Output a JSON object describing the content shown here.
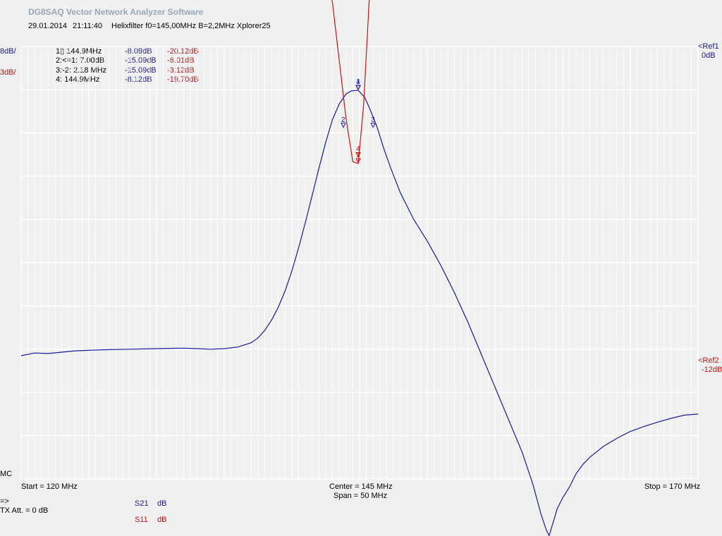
{
  "app_title": "DG8SAQ Vector Network Analyzer Software",
  "header": {
    "date": "29.01.2014",
    "time": "21:11:40",
    "note": "Helixfilter f0=145,00MHz B=2,2MHz Xplorer25"
  },
  "scales": {
    "s21_scale": "8dB/",
    "s11_scale": "3dB/"
  },
  "refs": {
    "ref1_label": "<Ref1",
    "ref1_value": "0dB",
    "ref2_label": "<Ref2",
    "ref2_value": "-12dB"
  },
  "markers_table": [
    {
      "label": "1▯ 144.9MHz",
      "s21": "-8.09dB",
      "s11": "-20.12dB"
    },
    {
      "label": "2:<=1:  7.00dB",
      "s21": "-15.09dB",
      "s11": "-6.01dB"
    },
    {
      "label": "3:-2:  2.18 MHz",
      "s21": "-15.09dB",
      "s11": "-3.12dB"
    },
    {
      "label": "4:  144.9MHz",
      "s21": "-8.12dB",
      "s11": "-19.70dB"
    }
  ],
  "mode": "MC",
  "freq_axis": {
    "start": "Start = 120 MHz",
    "center": "Center = 145 MHz",
    "span": "Span = 50 MHz",
    "stop": "Stop = 170 MHz"
  },
  "footer": {
    "arrow": "=>",
    "tx_att": "TX Att.  = 0 dB",
    "trace1_name": "S21",
    "trace1_unit": "dB",
    "trace2_name": "S11",
    "trace2_unit": "dB"
  },
  "colors": {
    "s21": "#1a1aa0",
    "s11": "#c81414",
    "grid": "#ffffff",
    "background": "#f0f0f0"
  },
  "chart_data": {
    "type": "line",
    "xlim": [
      120,
      170
    ],
    "grid": true,
    "series": [
      {
        "name": "S21",
        "unit": "dB",
        "scale_per_div": 8,
        "ref_value": 0,
        "x": [
          120,
          121,
          122,
          124,
          126,
          128,
          130,
          132,
          133,
          134,
          135,
          136,
          137,
          137.5,
          138,
          138.5,
          139,
          139.5,
          140,
          140.5,
          141,
          141.5,
          142,
          142.5,
          143,
          143.5,
          144,
          144.4,
          144.9,
          145.4,
          145.8,
          146.3,
          146.8,
          147.3,
          148,
          149,
          150,
          151,
          152,
          153,
          154,
          155,
          156,
          157,
          157.8,
          158.4,
          158.8,
          159,
          159.3,
          159.6,
          160,
          160.5,
          161,
          161.5,
          162,
          163,
          164,
          165,
          166,
          167,
          168,
          169,
          170
        ],
        "values": [
          -57.2,
          -56.7,
          -56.8,
          -56.3,
          -56.1,
          -56.0,
          -55.9,
          -55.8,
          -55.9,
          -56.0,
          -55.9,
          -55.6,
          -54.8,
          -53.9,
          -52.5,
          -50.6,
          -48.2,
          -45.2,
          -41.5,
          -37.2,
          -32.5,
          -27.5,
          -22.5,
          -17.7,
          -13.5,
          -10.6,
          -8.8,
          -8.2,
          -8.1,
          -9.5,
          -11.8,
          -15.0,
          -19.0,
          -22.5,
          -27.0,
          -32.0,
          -36.0,
          -40.5,
          -45.5,
          -51.0,
          -57.0,
          -63.0,
          -69.0,
          -75.0,
          -81.0,
          -86.5,
          -89.5,
          -90.5,
          -88.0,
          -85.5,
          -83.5,
          -81.5,
          -79.0,
          -77.3,
          -76.0,
          -74.0,
          -72.5,
          -71.2,
          -70.3,
          -69.5,
          -68.8,
          -68.2,
          -68.0
        ]
      },
      {
        "name": "S11",
        "unit": "dB",
        "scale_per_div": 3,
        "ref_value": -12,
        "x": [
          120,
          122,
          124,
          126,
          128,
          130,
          132,
          134,
          136,
          137,
          138,
          139,
          140,
          140.5,
          141,
          141.5,
          142,
          142.5,
          143,
          143.5,
          144,
          144.5,
          144.9,
          145.3,
          145.7,
          146.1,
          146.5,
          147,
          147.5,
          148,
          149,
          150,
          152,
          155,
          160,
          165,
          170
        ],
        "values": [
          -0.1,
          -0.1,
          -0.1,
          -0.08,
          -0.08,
          -0.08,
          -0.08,
          -0.1,
          -0.1,
          -0.15,
          -0.22,
          -0.35,
          -0.6,
          -0.9,
          -1.5,
          -2.5,
          -4.0,
          -6.0,
          -9.0,
          -13.0,
          -17.0,
          -20.0,
          -20.12,
          -16.0,
          -9.0,
          -4.5,
          -3.1,
          -2.0,
          -1.2,
          -0.8,
          -0.5,
          -0.35,
          -0.2,
          -0.12,
          -0.08,
          -0.05,
          0.0
        ]
      }
    ],
    "markers": [
      {
        "id": "1",
        "x": 144.9,
        "s21": -8.09,
        "s11": -20.12
      },
      {
        "id": "2",
        "x": 143.8,
        "s21": -15.09,
        "s11": -6.01
      },
      {
        "id": "3",
        "x": 146.0,
        "s21": -15.09,
        "s11": -3.12
      },
      {
        "id": "4",
        "x": 144.9,
        "s21": -8.12,
        "s11": -19.7
      }
    ]
  }
}
